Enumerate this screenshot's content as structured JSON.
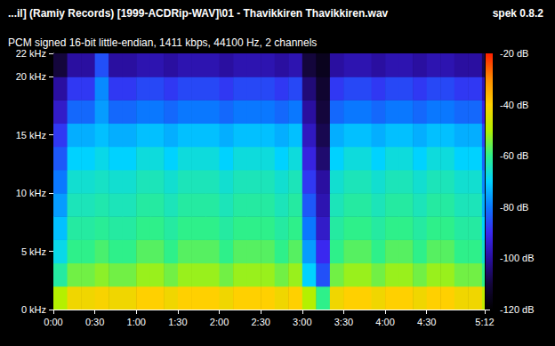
{
  "chart_data": {
    "type": "heatmap",
    "title": "...il] (Ramiy Records) [1999-ACDRip-WAV]\\01 - Thavikkiren Thavikkiren.wav",
    "subtitle": "PCM signed 16-bit little-endian, 1411 kbps, 44100 Hz, 2 channels",
    "annotations": [
      "spek 0.8.2"
    ],
    "grid": false,
    "xlim": [
      0,
      312
    ],
    "xticks": [
      {
        "value": 0,
        "label": "0:00"
      },
      {
        "value": 30,
        "label": "0:30"
      },
      {
        "value": 60,
        "label": "1:00"
      },
      {
        "value": 90,
        "label": "1:30"
      },
      {
        "value": 120,
        "label": "2:00"
      },
      {
        "value": 150,
        "label": "2:30"
      },
      {
        "value": 180,
        "label": "3:00"
      },
      {
        "value": 210,
        "label": "3:30"
      },
      {
        "value": 240,
        "label": "4:00"
      },
      {
        "value": 270,
        "label": "4:30"
      },
      {
        "value": 312,
        "label": "5:12"
      }
    ],
    "ylim": [
      0,
      22
    ],
    "yticks": [
      {
        "value": 0,
        "label": "0 kHz"
      },
      {
        "value": 5,
        "label": "5 kHz"
      },
      {
        "value": 10,
        "label": "10 kHz"
      },
      {
        "value": 15,
        "label": "15 kHz"
      },
      {
        "value": 20,
        "label": "20 kHz"
      },
      {
        "value": 22,
        "label": "22 kHz"
      }
    ],
    "time_bins": [
      0,
      10,
      20,
      30,
      40,
      50,
      60,
      70,
      80,
      90,
      100,
      110,
      120,
      130,
      140,
      150,
      160,
      170,
      180,
      190,
      200,
      210,
      220,
      230,
      240,
      250,
      260,
      270,
      280,
      290,
      300,
      310,
      312
    ],
    "freq_bins": [
      0,
      2,
      4,
      6,
      8,
      10,
      12,
      14,
      16,
      18,
      20,
      22
    ],
    "cells": [
      [
        -50,
        -42,
        -42,
        -41,
        -42,
        -42,
        -40,
        -40,
        -42,
        -40,
        -40,
        -40,
        -42,
        -40,
        -40,
        -40,
        -42,
        -40,
        -50,
        -60,
        -42,
        -40,
        -40,
        -42,
        -40,
        -40,
        -42,
        -40,
        -40,
        -42,
        -42,
        -48
      ],
      [
        -62,
        -55,
        -55,
        -53,
        -55,
        -55,
        -52,
        -52,
        -55,
        -52,
        -52,
        -52,
        -55,
        -52,
        -52,
        -52,
        -55,
        -52,
        -70,
        -85,
        -55,
        -52,
        -52,
        -55,
        -52,
        -52,
        -55,
        -52,
        -52,
        -55,
        -55,
        -60
      ],
      [
        -68,
        -60,
        -60,
        -58,
        -60,
        -60,
        -57,
        -57,
        -60,
        -57,
        -57,
        -57,
        -60,
        -57,
        -57,
        -57,
        -60,
        -57,
        -76,
        -90,
        -60,
        -57,
        -57,
        -60,
        -57,
        -57,
        -60,
        -57,
        -57,
        -60,
        -60,
        -66
      ],
      [
        -72,
        -62,
        -62,
        -61,
        -62,
        -62,
        -60,
        -60,
        -62,
        -60,
        -60,
        -60,
        -62,
        -60,
        -60,
        -60,
        -62,
        -60,
        -80,
        -95,
        -62,
        -60,
        -60,
        -62,
        -60,
        -60,
        -62,
        -60,
        -60,
        -62,
        -62,
        -70
      ],
      [
        -76,
        -64,
        -64,
        -63,
        -64,
        -64,
        -62,
        -62,
        -64,
        -62,
        -62,
        -62,
        -64,
        -62,
        -62,
        -62,
        -64,
        -62,
        -84,
        -98,
        -64,
        -62,
        -62,
        -64,
        -62,
        -62,
        -64,
        -62,
        -62,
        -64,
        -64,
        -74
      ],
      [
        -80,
        -66,
        -66,
        -65,
        -66,
        -66,
        -64,
        -64,
        -66,
        -64,
        -64,
        -64,
        -66,
        -64,
        -64,
        -64,
        -66,
        -64,
        -88,
        -100,
        -66,
        -64,
        -64,
        -66,
        -64,
        -64,
        -66,
        -64,
        -64,
        -66,
        -66,
        -78
      ],
      [
        -84,
        -70,
        -70,
        -68,
        -70,
        -70,
        -67,
        -67,
        -70,
        -67,
        -67,
        -67,
        -70,
        -67,
        -67,
        -67,
        -70,
        -67,
        -92,
        -105,
        -70,
        -67,
        -67,
        -70,
        -67,
        -67,
        -70,
        -67,
        -67,
        -70,
        -70,
        -82
      ],
      [
        -88,
        -74,
        -74,
        -72,
        -74,
        -74,
        -72,
        -72,
        -74,
        -72,
        -72,
        -72,
        -74,
        -72,
        -72,
        -72,
        -74,
        -72,
        -96,
        -108,
        -74,
        -72,
        -72,
        -74,
        -72,
        -72,
        -74,
        -72,
        -72,
        -74,
        -74,
        -86
      ],
      [
        -95,
        -82,
        -82,
        -76,
        -82,
        -82,
        -80,
        -80,
        -82,
        -80,
        -80,
        -80,
        -82,
        -80,
        -80,
        -80,
        -82,
        -80,
        -100,
        -110,
        -82,
        -80,
        -80,
        -82,
        -80,
        -80,
        -82,
        -80,
        -80,
        -82,
        -82,
        -92
      ],
      [
        -100,
        -88,
        -88,
        -78,
        -88,
        -88,
        -86,
        -86,
        -88,
        -86,
        -86,
        -86,
        -88,
        -86,
        -86,
        -86,
        -88,
        -86,
        -104,
        -112,
        -88,
        -86,
        -86,
        -88,
        -86,
        -86,
        -88,
        -86,
        -86,
        -88,
        -88,
        -98
      ],
      [
        -110,
        -100,
        -100,
        -85,
        -100,
        -100,
        -98,
        -98,
        -100,
        -98,
        -98,
        -98,
        -100,
        -98,
        -98,
        -98,
        -100,
        -98,
        -110,
        -115,
        -100,
        -98,
        -98,
        -100,
        -98,
        -98,
        -100,
        -98,
        -98,
        -100,
        -100,
        -108
      ]
    ],
    "colorbar_range": [
      -120,
      -20
    ],
    "colorbar_ticks": [
      {
        "value": -20,
        "label": "-20 dB"
      },
      {
        "value": -40,
        "label": "-40 dB"
      },
      {
        "value": -60,
        "label": "-60 dB"
      },
      {
        "value": -80,
        "label": "-80 dB"
      },
      {
        "value": -100,
        "label": "-100 dB"
      },
      {
        "value": -120,
        "label": "-120 dB"
      }
    ]
  }
}
